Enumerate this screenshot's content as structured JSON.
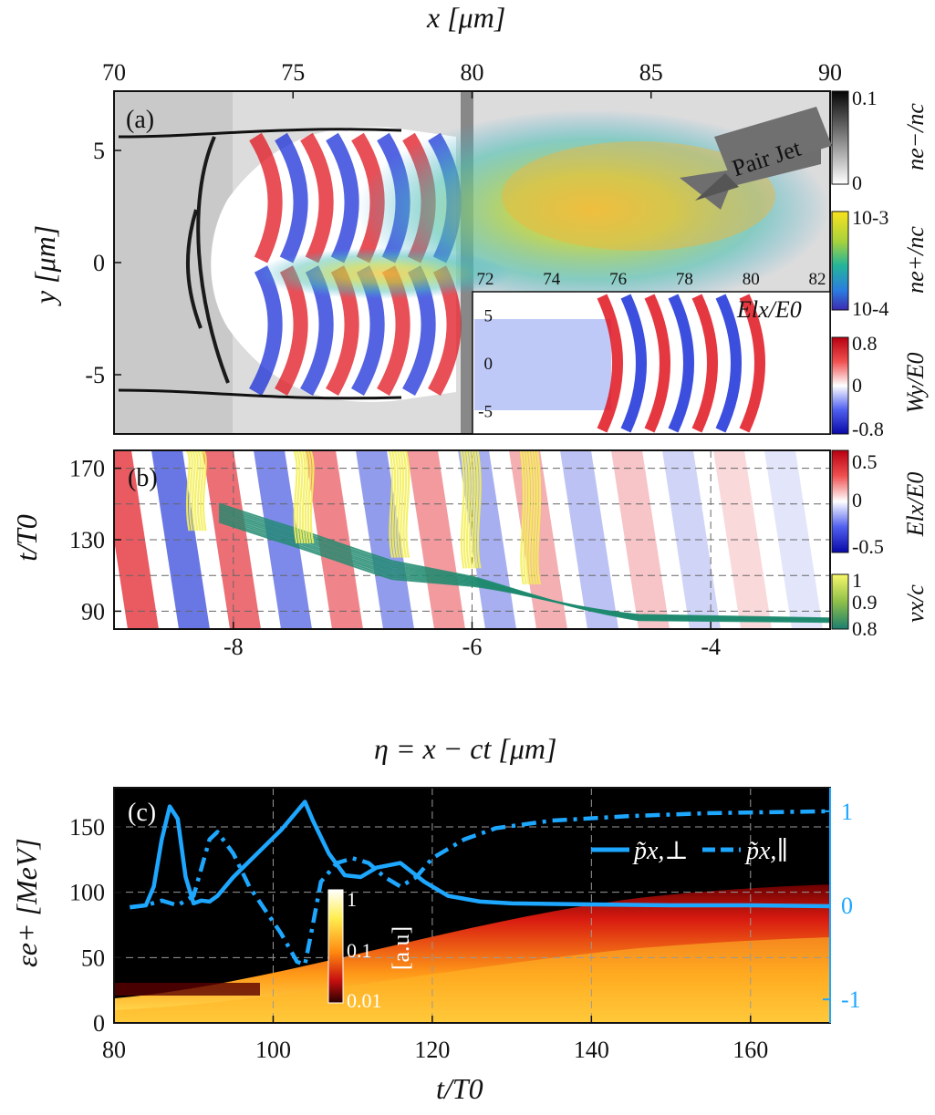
{
  "figure": {
    "panel_a": {
      "label": "(a)",
      "x_axis_title": "x [μm]",
      "y_axis_title": "y [μm]",
      "x_ticks": [
        "70",
        "75",
        "80",
        "85",
        "90"
      ],
      "y_ticks": [
        "5",
        "0",
        "-5"
      ],
      "annotation": "Pair Jet",
      "colorbar_ne_minus": {
        "title": "n_{e^-}/n_c",
        "title_text": "ne−/nc",
        "ticks": [
          "0.1",
          "0"
        ]
      },
      "colorbar_ne_plus": {
        "title_text": "ne+/nc",
        "ticks": [
          "10-3",
          "10-4"
        ]
      },
      "colorbar_wy": {
        "title_text": "Wy/E0",
        "ticks": [
          "0.8",
          "0",
          "-0.8"
        ]
      },
      "inset": {
        "title": "Elx/E0",
        "x_ticks": [
          "72",
          "74",
          "76",
          "78",
          "80",
          "82"
        ],
        "y_ticks": [
          "5",
          "0",
          "-5"
        ]
      }
    },
    "panel_b": {
      "label": "(b)",
      "x_axis_title": "η = x − ct [μm]",
      "y_axis_title": "t/T0",
      "x_ticks": [
        "-8",
        "-6",
        "-4"
      ],
      "y_ticks": [
        "170",
        "130",
        "90"
      ],
      "colorbar_elx": {
        "title_text": "Elx/E0",
        "ticks": [
          "0.5",
          "0",
          "-0.5"
        ]
      },
      "colorbar_vx": {
        "title_text": "vx/c",
        "ticks": [
          "1",
          "0.9",
          "0.8"
        ]
      }
    },
    "panel_c": {
      "label": "(c)",
      "x_axis_title": "t/T0",
      "y_axis_title": "εe+ [MeV]",
      "x_ticks": [
        "80",
        "100",
        "120",
        "140",
        "160"
      ],
      "y_ticks": [
        "150",
        "100",
        "50",
        "0"
      ],
      "y2_ticks": [
        "1",
        "0",
        "-1"
      ],
      "legend_perp": "p̃x,⊥",
      "legend_par": "p̃x,∥",
      "colorbar": {
        "unit": "[a.u]",
        "ticks": [
          "1",
          "0.1",
          "0.01"
        ]
      }
    }
  },
  "colors": {
    "line_blue": "#1ea7ff",
    "red": "#e0141e",
    "blue": "#1a2fd8",
    "yellow": "#f4f05a",
    "teal": "#1e8a6e"
  },
  "chart_data": [
    {
      "type": "heatmap",
      "title": "(a)",
      "xlabel": "x [μm]",
      "ylabel": "y [μm]",
      "xlim": [
        70,
        90
      ],
      "ylim": [
        -7.5,
        7.5
      ],
      "series": [
        {
          "name": "ne-/nc",
          "range": [
            0,
            0.1
          ]
        },
        {
          "name": "ne+/nc",
          "range": [
            0.0001,
            0.001
          ]
        },
        {
          "name": "Wy/E0",
          "range": [
            -0.8,
            0.8
          ]
        }
      ],
      "annotations": [
        "Pair Jet"
      ]
    },
    {
      "type": "line",
      "title": "(b)",
      "xlabel": "η = x − ct [μm]",
      "ylabel": "t/T0",
      "xlim": [
        -9,
        -3
      ],
      "ylim": [
        80,
        180
      ],
      "series": [
        {
          "name": "Elx/E0",
          "range": [
            -0.5,
            0.5
          ]
        },
        {
          "name": "vx/c",
          "range": [
            0.8,
            1
          ]
        }
      ]
    },
    {
      "type": "line",
      "title": "(c)",
      "xlabel": "t/T0",
      "ylabel": "εe+ [MeV]",
      "xlim": [
        80,
        170
      ],
      "ylim": [
        0,
        180
      ],
      "y2lim": [
        -1.25,
        1.25
      ],
      "series": [
        {
          "name": "p̃x,⊥",
          "x": [
            82,
            84,
            85,
            86,
            87,
            88,
            89,
            90,
            91,
            92,
            93,
            95,
            98,
            101,
            103,
            104,
            105,
            107,
            109,
            111,
            113,
            116,
            119,
            122,
            126,
            130,
            140,
            150,
            160,
            170
          ],
          "values": [
            -0.02,
            0.0,
            0.2,
            0.7,
            1.05,
            0.92,
            0.3,
            0.02,
            0.05,
            0.04,
            0.1,
            0.3,
            0.55,
            0.8,
            1.0,
            1.1,
            0.9,
            0.55,
            0.32,
            0.3,
            0.4,
            0.45,
            0.25,
            0.1,
            0.04,
            0.02,
            0.01,
            0.0,
            0.0,
            -0.01
          ]
        },
        {
          "name": "p̃x,∥",
          "x": [
            82,
            84,
            86,
            88,
            90,
            92,
            93,
            95,
            97,
            99,
            101,
            103,
            104,
            105,
            106,
            108,
            110,
            112,
            114,
            116,
            118,
            120,
            124,
            128,
            135,
            145,
            155,
            170
          ],
          "values": [
            -0.02,
            0.0,
            0.05,
            0.0,
            0.1,
            0.7,
            0.78,
            0.55,
            0.2,
            -0.05,
            -0.3,
            -0.6,
            -0.63,
            -0.2,
            0.25,
            0.45,
            0.5,
            0.45,
            0.3,
            0.2,
            0.3,
            0.5,
            0.7,
            0.82,
            0.9,
            0.95,
            0.98,
            1.0
          ]
        }
      ],
      "colorbar": {
        "label": "[a.u]",
        "ticks": [
          1,
          0.1,
          0.01
        ]
      }
    }
  ]
}
